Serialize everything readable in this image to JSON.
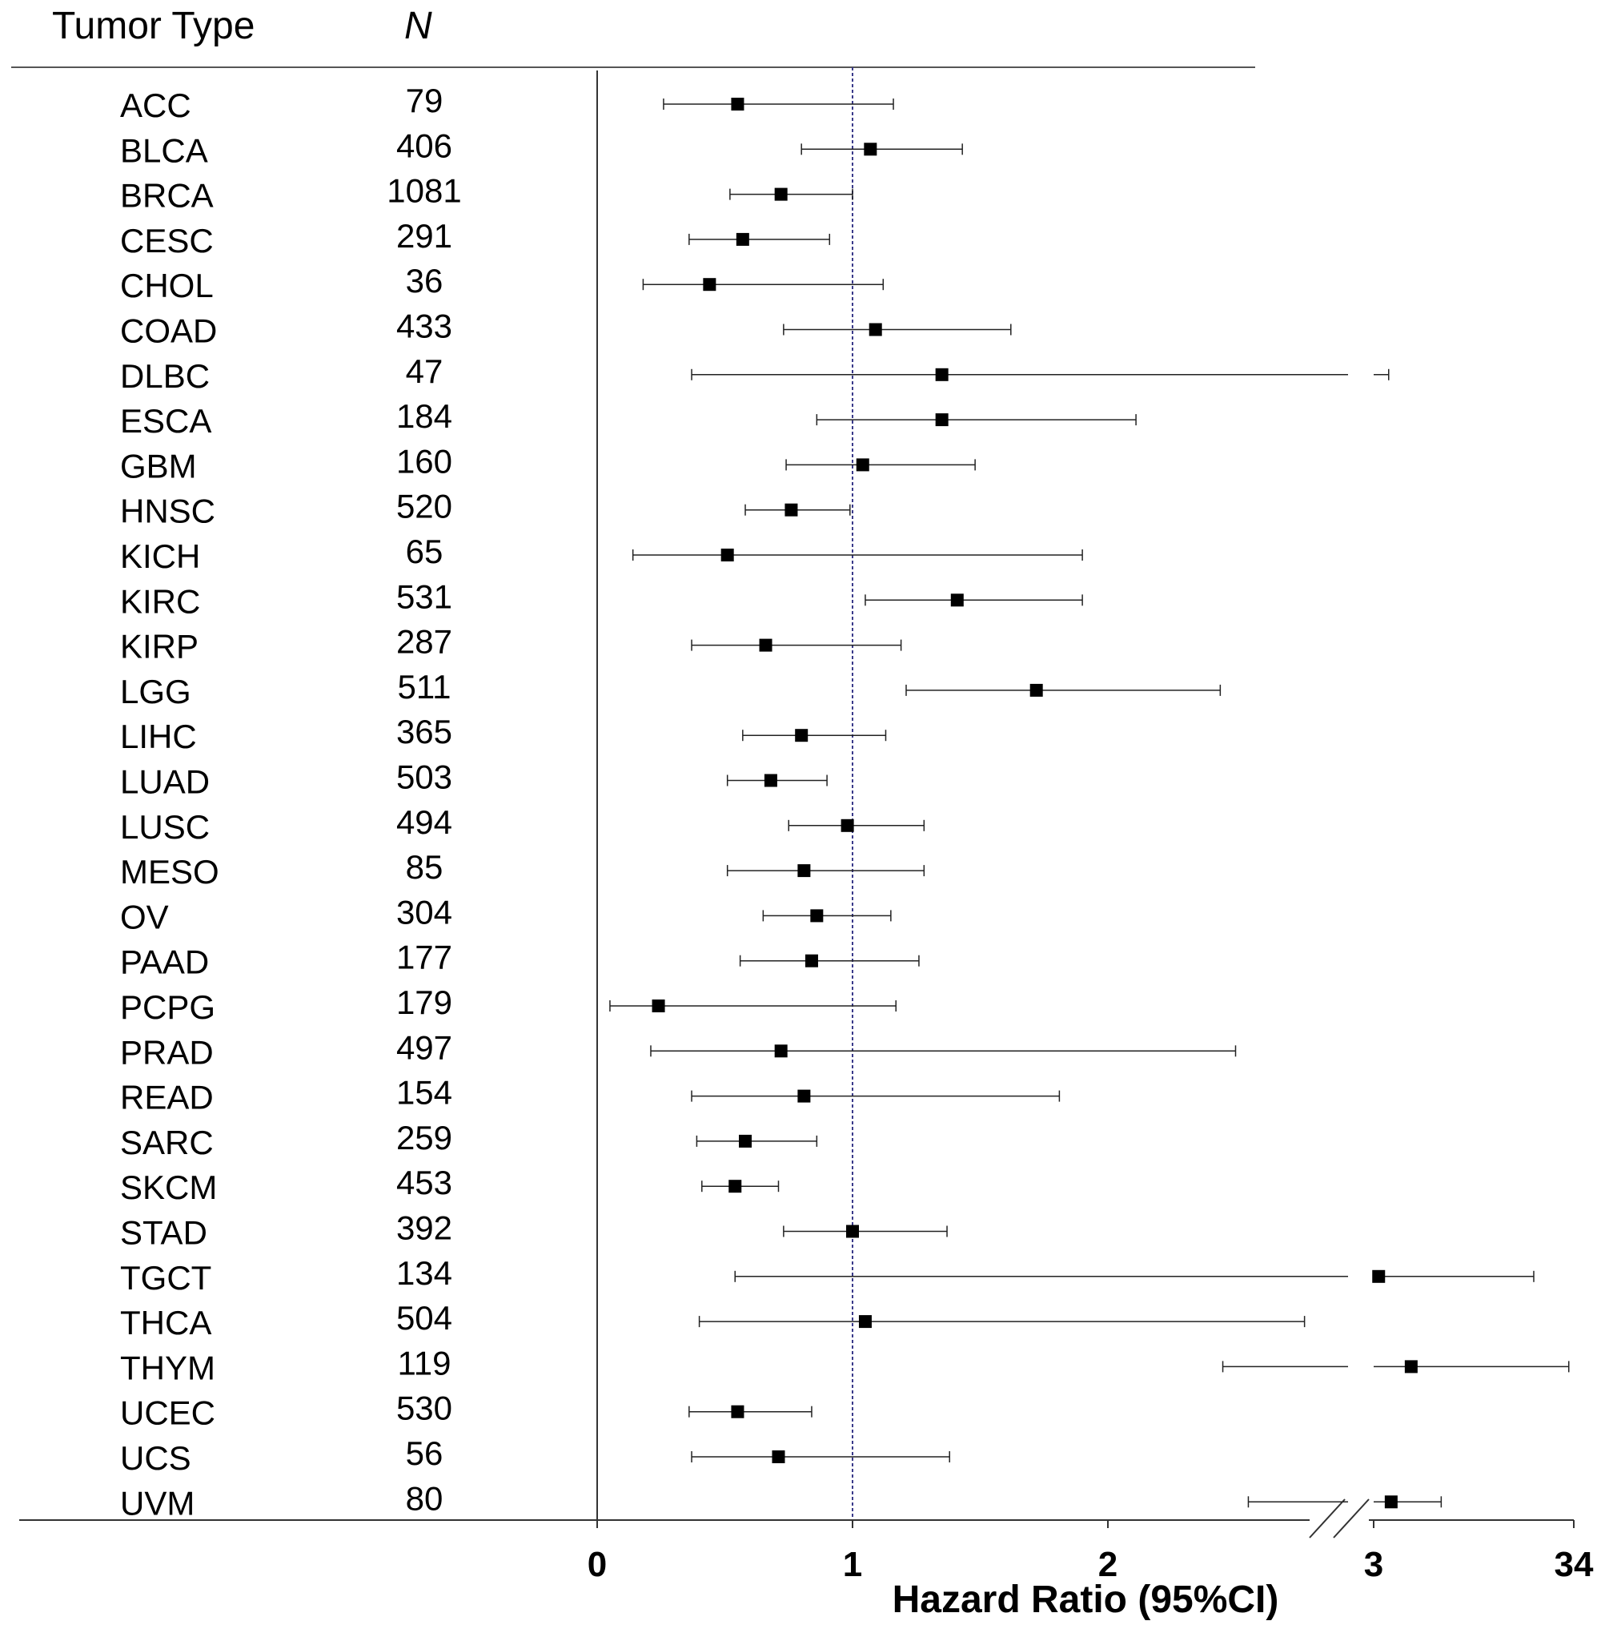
{
  "header": {
    "tumor_type": "Tumor Type",
    "n": "N"
  },
  "chart_data": {
    "type": "forest",
    "xlabel": "Hazard Ratio (95%CI)",
    "reference_line": 1,
    "axis_broken": true,
    "x_ticks": [
      "0",
      "1",
      "2",
      "3",
      "34"
    ],
    "rows": [
      {
        "tumor": "ACC",
        "n": "79",
        "hr": 0.55,
        "lo": 0.26,
        "hi": 1.16
      },
      {
        "tumor": "BLCA",
        "n": "406",
        "hr": 1.07,
        "lo": 0.8,
        "hi": 1.43
      },
      {
        "tumor": "BRCA",
        "n": "1081",
        "hr": 0.72,
        "lo": 0.52,
        "hi": 1.0
      },
      {
        "tumor": "CESC",
        "n": "291",
        "hr": 0.57,
        "lo": 0.36,
        "hi": 0.91
      },
      {
        "tumor": "CHOL",
        "n": "36",
        "hr": 0.44,
        "lo": 0.18,
        "hi": 1.12
      },
      {
        "tumor": "COAD",
        "n": "433",
        "hr": 1.09,
        "lo": 0.73,
        "hi": 1.62
      },
      {
        "tumor": "DLBC",
        "n": "47",
        "hr": 1.35,
        "lo": 0.37,
        "hi": 3.06
      },
      {
        "tumor": "ESCA",
        "n": "184",
        "hr": 1.35,
        "lo": 0.86,
        "hi": 2.11
      },
      {
        "tumor": "GBM",
        "n": "160",
        "hr": 1.04,
        "lo": 0.74,
        "hi": 1.48
      },
      {
        "tumor": "HNSC",
        "n": "520",
        "hr": 0.76,
        "lo": 0.58,
        "hi": 0.99
      },
      {
        "tumor": "KICH",
        "n": "65",
        "hr": 0.51,
        "lo": 0.14,
        "hi": 1.9
      },
      {
        "tumor": "KIRC",
        "n": "531",
        "hr": 1.41,
        "lo": 1.05,
        "hi": 1.9
      },
      {
        "tumor": "KIRP",
        "n": "287",
        "hr": 0.66,
        "lo": 0.37,
        "hi": 1.19
      },
      {
        "tumor": "LGG",
        "n": "511",
        "hr": 1.72,
        "lo": 1.21,
        "hi": 2.44
      },
      {
        "tumor": "LIHC",
        "n": "365",
        "hr": 0.8,
        "lo": 0.57,
        "hi": 1.13
      },
      {
        "tumor": "LUAD",
        "n": "503",
        "hr": 0.68,
        "lo": 0.51,
        "hi": 0.9
      },
      {
        "tumor": "LUSC",
        "n": "494",
        "hr": 0.98,
        "lo": 0.75,
        "hi": 1.28
      },
      {
        "tumor": "MESO",
        "n": "85",
        "hr": 0.81,
        "lo": 0.51,
        "hi": 1.28
      },
      {
        "tumor": "OV",
        "n": "304",
        "hr": 0.86,
        "lo": 0.65,
        "hi": 1.15
      },
      {
        "tumor": "PAAD",
        "n": "177",
        "hr": 0.84,
        "lo": 0.56,
        "hi": 1.26
      },
      {
        "tumor": "PCPG",
        "n": "179",
        "hr": 0.24,
        "lo": 0.05,
        "hi": 1.17
      },
      {
        "tumor": "PRAD",
        "n": "497",
        "hr": 0.72,
        "lo": 0.21,
        "hi": 2.5
      },
      {
        "tumor": "READ",
        "n": "154",
        "hr": 0.81,
        "lo": 0.37,
        "hi": 1.81
      },
      {
        "tumor": "SARC",
        "n": "259",
        "hr": 0.58,
        "lo": 0.39,
        "hi": 0.86
      },
      {
        "tumor": "SKCM",
        "n": "453",
        "hr": 0.54,
        "lo": 0.41,
        "hi": 0.71
      },
      {
        "tumor": "STAD",
        "n": "392",
        "hr": 1.0,
        "lo": 0.73,
        "hi": 1.37
      },
      {
        "tumor": "TGCT",
        "n": "134",
        "hr": 3.02,
        "lo": 0.54,
        "hi": 3.64
      },
      {
        "tumor": "THCA",
        "n": "504",
        "hr": 1.05,
        "lo": 0.4,
        "hi": 2.77
      },
      {
        "tumor": "THYM",
        "n": "119",
        "hr": 3.15,
        "lo": 2.45,
        "hi": 3.78
      },
      {
        "tumor": "UCEC",
        "n": "530",
        "hr": 0.55,
        "lo": 0.36,
        "hi": 0.84
      },
      {
        "tumor": "UCS",
        "n": "56",
        "hr": 0.71,
        "lo": 0.37,
        "hi": 1.38
      },
      {
        "tumor": "UVM",
        "n": "80",
        "hr": 3.07,
        "lo": 2.55,
        "hi": 3.27
      }
    ]
  }
}
